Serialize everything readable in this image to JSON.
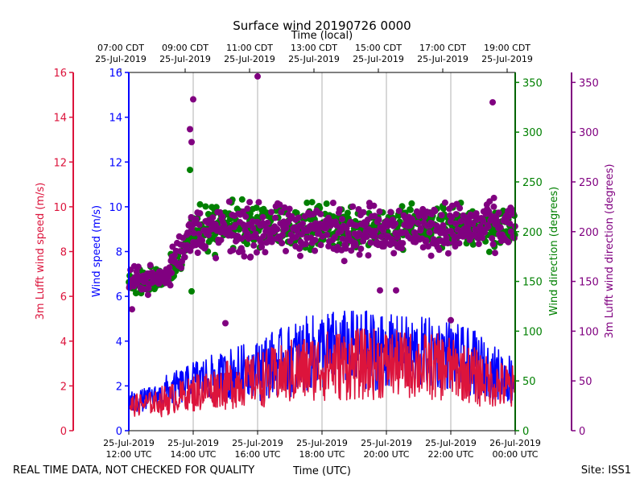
{
  "chart_data": {
    "type": "scatter+line",
    "title": "Surface wind 20190726 0000",
    "top_axis_label": "Time (local)",
    "top_ticks": [
      {
        "l1": "07:00 CDT",
        "l2": "25-Jul-2019"
      },
      {
        "l1": "09:00 CDT",
        "l2": "25-Jul-2019"
      },
      {
        "l1": "11:00 CDT",
        "l2": "25-Jul-2019"
      },
      {
        "l1": "13:00 CDT",
        "l2": "25-Jul-2019"
      },
      {
        "l1": "15:00 CDT",
        "l2": "25-Jul-2019"
      },
      {
        "l1": "17:00 CDT",
        "l2": "25-Jul-2019"
      },
      {
        "l1": "19:00 CDT",
        "l2": "25-Jul-2019"
      }
    ],
    "bottom_ticks": [
      {
        "l1": "25-Jul-2019",
        "l2": "12:00 UTC"
      },
      {
        "l1": "25-Jul-2019",
        "l2": "14:00 UTC"
      },
      {
        "l1": "25-Jul-2019",
        "l2": "16:00 UTC"
      },
      {
        "l1": "25-Jul-2019",
        "l2": "18:00 UTC"
      },
      {
        "l1": "25-Jul-2019",
        "l2": "20:00 UTC"
      },
      {
        "l1": "25-Jul-2019",
        "l2": "22:00 UTC"
      },
      {
        "l1": "26-Jul-2019",
        "l2": "00:00 UTC"
      }
    ],
    "xlabel": "Time (UTC)",
    "x_range_hours_utc": [
      12,
      24
    ],
    "left_outer_axis": {
      "label": "3m Lufft wind speed (m/s)",
      "color": "#dc143c",
      "ylim": [
        0,
        16
      ],
      "ticks": [
        0,
        2,
        4,
        6,
        8,
        10,
        12,
        14,
        16
      ]
    },
    "left_inner_axis": {
      "label": "Wind speed (m/s)",
      "color": "#0000ff",
      "ylim": [
        0,
        16
      ],
      "ticks": [
        0,
        2,
        4,
        6,
        8,
        10,
        12,
        14,
        16
      ]
    },
    "right_inner_axis": {
      "label": "Wind direction (degrees)",
      "color": "#008000",
      "ylim": [
        0,
        360
      ],
      "ticks": [
        0,
        50,
        100,
        150,
        200,
        250,
        300,
        350
      ]
    },
    "right_outer_axis": {
      "label": "3m Lufft wind direction (degrees)",
      "color": "#800080",
      "ylim": [
        0,
        360
      ],
      "ticks": [
        0,
        50,
        100,
        150,
        200,
        250,
        300,
        350
      ]
    },
    "series": [
      {
        "name": "Wind speed (m/s)",
        "axis": "left_inner",
        "kind": "line",
        "color": "#0000ff",
        "segments": [
          {
            "t": [
              12.0,
              13.0
            ],
            "base": [
              1.2,
              1.6
            ],
            "amp": 0.5
          },
          {
            "t": [
              13.0,
              14.0
            ],
            "base": [
              1.6,
              2.2
            ],
            "amp": 0.8
          },
          {
            "t": [
              14.0,
              15.0
            ],
            "base": [
              2.2,
              2.5
            ],
            "amp": 1.0
          },
          {
            "t": [
              15.0,
              16.0
            ],
            "base": [
              2.5,
              2.8
            ],
            "amp": 1.2
          },
          {
            "t": [
              16.0,
              17.0
            ],
            "base": [
              2.8,
              3.2
            ],
            "amp": 1.5
          },
          {
            "t": [
              17.0,
              18.0
            ],
            "base": [
              3.2,
              3.6
            ],
            "amp": 1.7
          },
          {
            "t": [
              18.0,
              20.0
            ],
            "base": [
              3.6,
              3.6
            ],
            "amp": 1.8
          },
          {
            "t": [
              20.0,
              22.0
            ],
            "base": [
              3.6,
              3.4
            ],
            "amp": 1.6
          },
          {
            "t": [
              22.0,
              23.0
            ],
            "base": [
              3.4,
              2.8
            ],
            "amp": 1.5
          },
          {
            "t": [
              23.0,
              24.0
            ],
            "base": [
              2.8,
              2.2
            ],
            "amp": 1.2
          }
        ],
        "peak_approx": 6.1
      },
      {
        "name": "3m Lufft wind speed (m/s)",
        "axis": "left_outer",
        "kind": "line",
        "color": "#dc143c",
        "segments": [
          {
            "t": [
              12.0,
              13.0
            ],
            "base": [
              1.1,
              1.3
            ],
            "amp": 0.5
          },
          {
            "t": [
              13.0,
              14.0
            ],
            "base": [
              1.3,
              1.7
            ],
            "amp": 0.7
          },
          {
            "t": [
              14.0,
              15.0
            ],
            "base": [
              1.7,
              2.0
            ],
            "amp": 0.9
          },
          {
            "t": [
              15.0,
              16.0
            ],
            "base": [
              2.0,
              2.3
            ],
            "amp": 1.1
          },
          {
            "t": [
              16.0,
              17.0
            ],
            "base": [
              2.3,
              2.6
            ],
            "amp": 1.3
          },
          {
            "t": [
              17.0,
              18.0
            ],
            "base": [
              2.6,
              2.9
            ],
            "amp": 1.5
          },
          {
            "t": [
              18.0,
              20.0
            ],
            "base": [
              2.9,
              3.0
            ],
            "amp": 1.6
          },
          {
            "t": [
              20.0,
              22.0
            ],
            "base": [
              3.0,
              2.8
            ],
            "amp": 1.5
          },
          {
            "t": [
              22.0,
              23.0
            ],
            "base": [
              2.8,
              2.3
            ],
            "amp": 1.3
          },
          {
            "t": [
              23.0,
              24.0
            ],
            "base": [
              2.3,
              1.8
            ],
            "amp": 1.1
          }
        ],
        "peak_approx": 4.8
      },
      {
        "name": "Wind direction (degrees)",
        "axis": "right_inner",
        "kind": "scatter",
        "color": "#008000",
        "segments": [
          {
            "t": [
              12.0,
              13.3
            ],
            "center": [
              148,
              155
            ],
            "spread": 12
          },
          {
            "t": [
              13.3,
              14.0
            ],
            "center": [
              165,
              195
            ],
            "spread": 22
          },
          {
            "t": [
              14.0,
              24.0
            ],
            "center": [
              205,
              205
            ],
            "spread": 25
          }
        ],
        "outliers": [
          {
            "t": 13.9,
            "v": 262
          },
          {
            "t": 13.95,
            "v": 140
          }
        ]
      },
      {
        "name": "3m Lufft wind direction (degrees)",
        "axis": "right_outer",
        "kind": "scatter",
        "color": "#800080",
        "segments": [
          {
            "t": [
              12.0,
              13.3
            ],
            "center": [
              150,
              155
            ],
            "spread": 14
          },
          {
            "t": [
              13.3,
              14.0
            ],
            "center": [
              170,
              200
            ],
            "spread": 25
          },
          {
            "t": [
              14.0,
              24.0
            ],
            "center": [
              200,
              205
            ],
            "spread": 28
          }
        ],
        "outliers": [
          {
            "t": 12.1,
            "v": 122
          },
          {
            "t": 13.9,
            "v": 303
          },
          {
            "t": 13.95,
            "v": 290
          },
          {
            "t": 14.0,
            "v": 333
          },
          {
            "t": 15.0,
            "v": 108
          },
          {
            "t": 16.0,
            "v": 356
          },
          {
            "t": 19.8,
            "v": 141
          },
          {
            "t": 20.3,
            "v": 141
          },
          {
            "t": 22.0,
            "v": 111
          },
          {
            "t": 23.3,
            "v": 330
          }
        ]
      }
    ]
  },
  "footer": {
    "quality_note": "REAL TIME DATA, NOT CHECKED FOR QUALITY",
    "site": "Site: ISS1"
  }
}
